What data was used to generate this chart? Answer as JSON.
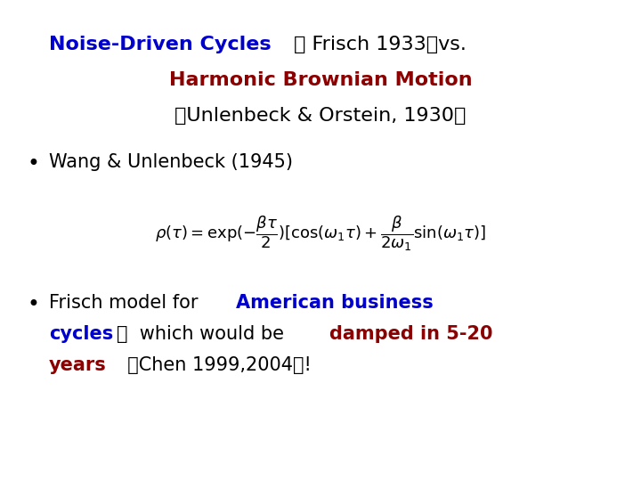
{
  "bg_color": "#ffffff",
  "title_fs": 16,
  "bullet_fs": 15,
  "formula_fs": 13,
  "title_line1_blue": "Noise-Driven Cycles",
  "title_line1_black": " （ Frisch 1933）vs.",
  "title_line2": "Harmonic Brownian Motion",
  "title_line3": "（Unlenbeck & Orstein, 1930）",
  "blue": "#0000cc",
  "darkred": "#8b0000",
  "black": "#000000"
}
